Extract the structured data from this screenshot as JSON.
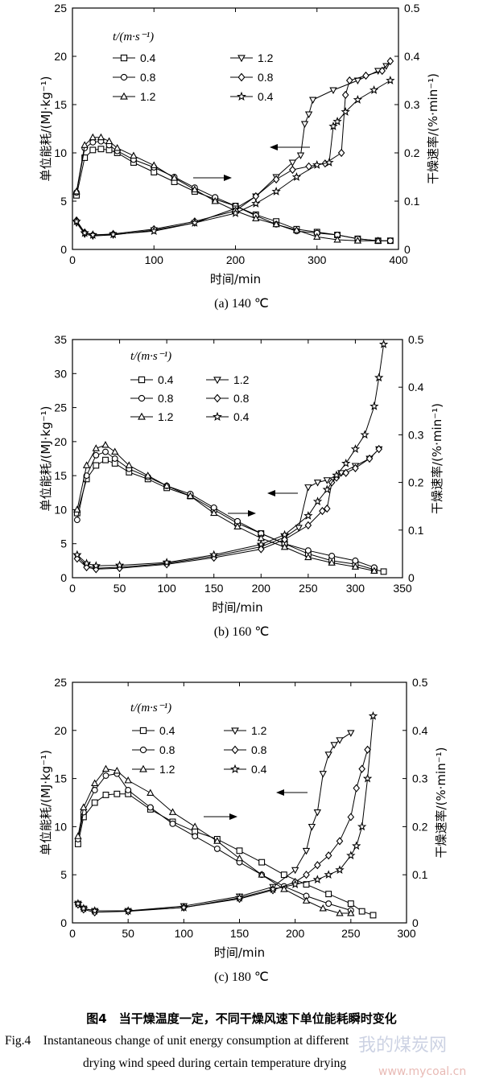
{
  "figure": {
    "caption_zh": "图4　当干燥温度一定，不同干燥风速下单位能耗瞬时变化",
    "caption_en_1": "Fig.4　Instantaneous change of unit energy consumption at different",
    "caption_en_2": "drying wind speed during certain temperature drying",
    "watermark_1": "我的煤炭网",
    "watermark_2": "www.mycoal.cn"
  },
  "chart_data": [
    {
      "type": "line",
      "subtitle": "(a) 140 ℃",
      "xlabel": "时间/min",
      "ylabel_left": "单位能耗/(MJ·kg⁻¹)",
      "ylabel_right": "干燥速率/(%·min⁻¹)",
      "legend_title": "t/(m·s⁻¹)",
      "legend_placement": "top-left",
      "xlim": [
        0,
        400
      ],
      "xticks": [
        0,
        100,
        200,
        300,
        400
      ],
      "ylim_left": [
        0,
        25
      ],
      "yticks_left": [
        0,
        5,
        10,
        15,
        20,
        25
      ],
      "ylim_right": [
        0,
        0.5
      ],
      "yticks_right": [
        0,
        0.1,
        0.2,
        0.3,
        0.4,
        0.5
      ],
      "series": [
        {
          "name": "0.4",
          "axis": "left",
          "marker": "square",
          "x": [
            5,
            15,
            25,
            35,
            45,
            55,
            75,
            100,
            125,
            150,
            175,
            200,
            225,
            250,
            275,
            300,
            325,
            350,
            375,
            390
          ],
          "y": [
            5.6,
            9.5,
            10.3,
            10.4,
            10.3,
            10.0,
            9.0,
            8.0,
            7.0,
            6.0,
            5.2,
            4.5,
            3.6,
            2.9,
            2.1,
            1.8,
            1.5,
            1.1,
            0.9,
            0.9
          ]
        },
        {
          "name": "0.8",
          "axis": "left",
          "marker": "circle",
          "x": [
            5,
            15,
            25,
            35,
            45,
            55,
            75,
            100,
            125,
            150,
            175,
            200,
            225,
            250,
            275,
            300,
            325,
            350,
            375,
            390
          ],
          "y": [
            5.9,
            10.5,
            11.1,
            11.2,
            10.8,
            10.2,
            9.3,
            8.5,
            7.5,
            6.4,
            5.4,
            4.5,
            3.5,
            2.6,
            1.9,
            1.7,
            1.5,
            1.1,
            0.9,
            0.9
          ]
        },
        {
          "name": "1.2",
          "axis": "left",
          "marker": "triangle-up",
          "x": [
            5,
            15,
            25,
            35,
            45,
            55,
            75,
            100,
            125,
            150,
            175,
            200,
            225,
            250,
            275,
            300,
            325,
            350,
            375
          ],
          "y": [
            6.0,
            10.8,
            11.6,
            11.6,
            11.2,
            10.5,
            9.7,
            8.7,
            7.4,
            6.2,
            5.0,
            4.0,
            3.2,
            2.6,
            2.0,
            1.3,
            1.0,
            0.9,
            0.9
          ]
        },
        {
          "name": "1.2",
          "axis": "right",
          "marker": "triangle-down",
          "x": [
            5,
            15,
            25,
            50,
            100,
            150,
            200,
            225,
            250,
            270,
            280,
            285,
            290,
            295,
            320,
            350,
            375,
            385
          ],
          "y": [
            0.055,
            0.032,
            0.028,
            0.03,
            0.04,
            0.055,
            0.085,
            0.11,
            0.15,
            0.18,
            0.195,
            0.26,
            0.28,
            0.31,
            0.33,
            0.35,
            0.37,
            0.38
          ]
        },
        {
          "name": "0.8",
          "axis": "right",
          "marker": "diamond",
          "x": [
            5,
            15,
            25,
            50,
            100,
            150,
            200,
            225,
            250,
            270,
            290,
            310,
            330,
            335,
            340,
            360,
            380,
            390
          ],
          "y": [
            0.06,
            0.035,
            0.03,
            0.032,
            0.042,
            0.058,
            0.08,
            0.11,
            0.145,
            0.165,
            0.172,
            0.178,
            0.2,
            0.32,
            0.35,
            0.36,
            0.37,
            0.39
          ]
        },
        {
          "name": "0.4",
          "axis": "right",
          "marker": "star",
          "x": [
            5,
            15,
            25,
            50,
            100,
            150,
            200,
            225,
            250,
            275,
            300,
            315,
            320,
            325,
            335,
            350,
            370,
            390
          ],
          "y": [
            0.058,
            0.034,
            0.03,
            0.031,
            0.038,
            0.055,
            0.075,
            0.095,
            0.12,
            0.15,
            0.175,
            0.18,
            0.255,
            0.265,
            0.285,
            0.31,
            0.33,
            0.35
          ]
        }
      ]
    },
    {
      "type": "line",
      "subtitle": "(b) 160 ℃",
      "xlabel": "时间/min",
      "ylabel_left": "单位能耗/(MJ·kg⁻¹)",
      "ylabel_right": "干燥速率/(%·min⁻¹)",
      "legend_title": "t/(m·s⁻¹)",
      "legend_placement": "top-left",
      "xlim": [
        0,
        350
      ],
      "xticks": [
        0,
        50,
        100,
        150,
        200,
        250,
        300,
        350
      ],
      "ylim_left": [
        0,
        35
      ],
      "yticks_left": [
        0,
        5,
        10,
        15,
        20,
        25,
        30,
        35
      ],
      "ylim_right": [
        0,
        0.5
      ],
      "yticks_right": [
        0,
        0.1,
        0.2,
        0.3,
        0.4,
        0.5
      ],
      "series": [
        {
          "name": "0.4",
          "axis": "left",
          "marker": "square",
          "x": [
            5,
            15,
            25,
            35,
            45,
            60,
            80,
            100,
            125,
            150,
            175,
            200,
            225,
            250,
            275,
            300,
            320,
            330
          ],
          "y": [
            9.5,
            14.5,
            16.5,
            17.3,
            16.8,
            15.5,
            14.5,
            13.2,
            12.0,
            10.0,
            8.0,
            6.5,
            5.0,
            3.5,
            2.5,
            2.0,
            1.2,
            0.9
          ]
        },
        {
          "name": "0.8",
          "axis": "left",
          "marker": "circle",
          "x": [
            5,
            15,
            25,
            35,
            45,
            60,
            80,
            100,
            125,
            150,
            175,
            200,
            225,
            250,
            275,
            300,
            320
          ],
          "y": [
            8.5,
            15.0,
            18.0,
            18.5,
            17.5,
            16.0,
            14.8,
            13.5,
            12.3,
            10.3,
            8.3,
            6.5,
            5.0,
            4.0,
            3.2,
            2.5,
            1.5
          ]
        },
        {
          "name": "1.2",
          "axis": "left",
          "marker": "triangle-up",
          "x": [
            5,
            15,
            25,
            35,
            45,
            60,
            80,
            100,
            125,
            150,
            175,
            200,
            225,
            250,
            275,
            300,
            320
          ],
          "y": [
            10.0,
            16.5,
            19.0,
            19.5,
            18.5,
            16.5,
            15.0,
            13.5,
            12.0,
            9.5,
            7.5,
            5.8,
            4.5,
            3.0,
            2.2,
            1.6,
            1.0
          ]
        },
        {
          "name": "1.2",
          "axis": "right",
          "marker": "triangle-down",
          "x": [
            5,
            15,
            25,
            50,
            100,
            150,
            200,
            225,
            240,
            250,
            260,
            270,
            285,
            300,
            315,
            325
          ],
          "y": [
            0.045,
            0.025,
            0.02,
            0.022,
            0.03,
            0.045,
            0.065,
            0.085,
            0.105,
            0.19,
            0.2,
            0.205,
            0.22,
            0.235,
            0.25,
            0.27
          ]
        },
        {
          "name": "0.8",
          "axis": "right",
          "marker": "diamond",
          "x": [
            5,
            15,
            25,
            50,
            100,
            150,
            200,
            225,
            250,
            265,
            270,
            275,
            280,
            290,
            300,
            315,
            325
          ],
          "y": [
            0.04,
            0.022,
            0.018,
            0.02,
            0.028,
            0.042,
            0.06,
            0.08,
            0.11,
            0.14,
            0.145,
            0.2,
            0.21,
            0.22,
            0.23,
            0.25,
            0.27
          ]
        },
        {
          "name": "0.4",
          "axis": "right",
          "marker": "star",
          "x": [
            5,
            15,
            25,
            50,
            100,
            150,
            200,
            225,
            250,
            260,
            270,
            280,
            290,
            300,
            310,
            320,
            325,
            330
          ],
          "y": [
            0.048,
            0.03,
            0.025,
            0.026,
            0.032,
            0.048,
            0.07,
            0.09,
            0.13,
            0.16,
            0.185,
            0.215,
            0.24,
            0.27,
            0.3,
            0.36,
            0.42,
            0.49
          ]
        }
      ]
    },
    {
      "type": "line",
      "subtitle": "(c) 180 ℃",
      "xlabel": "时间/min",
      "ylabel_left": "单位能耗/(MJ·kg⁻¹)",
      "ylabel_right": "干燥速率/(%·min⁻¹)",
      "legend_title": "t/(m·s⁻¹)",
      "legend_placement": "top-left",
      "xlim": [
        0,
        300
      ],
      "xticks": [
        0,
        50,
        100,
        150,
        200,
        250,
        300
      ],
      "ylim_left": [
        0,
        25
      ],
      "yticks_left": [
        0,
        5,
        10,
        15,
        20,
        25
      ],
      "ylim_right": [
        0,
        0.5
      ],
      "yticks_right": [
        0,
        0.1,
        0.2,
        0.3,
        0.4,
        0.5
      ],
      "series": [
        {
          "name": "0.4",
          "axis": "left",
          "marker": "square",
          "x": [
            5,
            10,
            20,
            30,
            40,
            50,
            70,
            90,
            110,
            130,
            150,
            170,
            190,
            210,
            230,
            250,
            260,
            270
          ],
          "y": [
            8.2,
            11.0,
            12.5,
            13.3,
            13.4,
            13.4,
            11.8,
            10.5,
            9.5,
            8.7,
            7.5,
            6.3,
            5.0,
            4.0,
            3.0,
            2.0,
            1.2,
            0.8
          ]
        },
        {
          "name": "0.8",
          "axis": "left",
          "marker": "circle",
          "x": [
            5,
            10,
            20,
            30,
            40,
            50,
            70,
            90,
            110,
            130,
            150,
            170,
            190,
            210,
            230,
            250
          ],
          "y": [
            8.7,
            11.5,
            13.8,
            15.3,
            15.5,
            13.8,
            12.0,
            10.3,
            9.0,
            7.7,
            6.3,
            5.0,
            3.8,
            2.8,
            2.0,
            1.3
          ]
        },
        {
          "name": "1.2",
          "axis": "left",
          "marker": "triangle-up",
          "x": [
            5,
            10,
            20,
            30,
            40,
            50,
            70,
            90,
            110,
            130,
            150,
            170,
            190,
            210,
            225,
            240,
            250
          ],
          "y": [
            9.0,
            12.0,
            14.5,
            16.0,
            15.8,
            14.8,
            13.5,
            11.5,
            10.0,
            8.5,
            6.7,
            5.0,
            3.5,
            2.3,
            1.5,
            1.0,
            1.0
          ]
        },
        {
          "name": "1.2",
          "axis": "right",
          "marker": "triangle-down",
          "x": [
            5,
            10,
            20,
            50,
            100,
            150,
            180,
            200,
            210,
            215,
            220,
            225,
            230,
            235,
            240,
            250
          ],
          "y": [
            0.04,
            0.03,
            0.025,
            0.025,
            0.035,
            0.055,
            0.075,
            0.11,
            0.15,
            0.2,
            0.23,
            0.31,
            0.35,
            0.37,
            0.38,
            0.395
          ]
        },
        {
          "name": "0.8",
          "axis": "right",
          "marker": "diamond",
          "x": [
            5,
            10,
            20,
            50,
            100,
            150,
            180,
            200,
            210,
            220,
            230,
            240,
            250,
            255,
            260,
            265
          ],
          "y": [
            0.038,
            0.028,
            0.022,
            0.024,
            0.032,
            0.05,
            0.068,
            0.085,
            0.1,
            0.12,
            0.14,
            0.17,
            0.22,
            0.28,
            0.32,
            0.36
          ]
        },
        {
          "name": "0.4",
          "axis": "right",
          "marker": "star",
          "x": [
            5,
            10,
            20,
            50,
            100,
            150,
            180,
            200,
            220,
            230,
            240,
            250,
            255,
            260,
            265,
            270
          ],
          "y": [
            0.04,
            0.03,
            0.025,
            0.025,
            0.032,
            0.052,
            0.07,
            0.08,
            0.09,
            0.1,
            0.11,
            0.14,
            0.16,
            0.2,
            0.3,
            0.43
          ]
        }
      ]
    }
  ]
}
